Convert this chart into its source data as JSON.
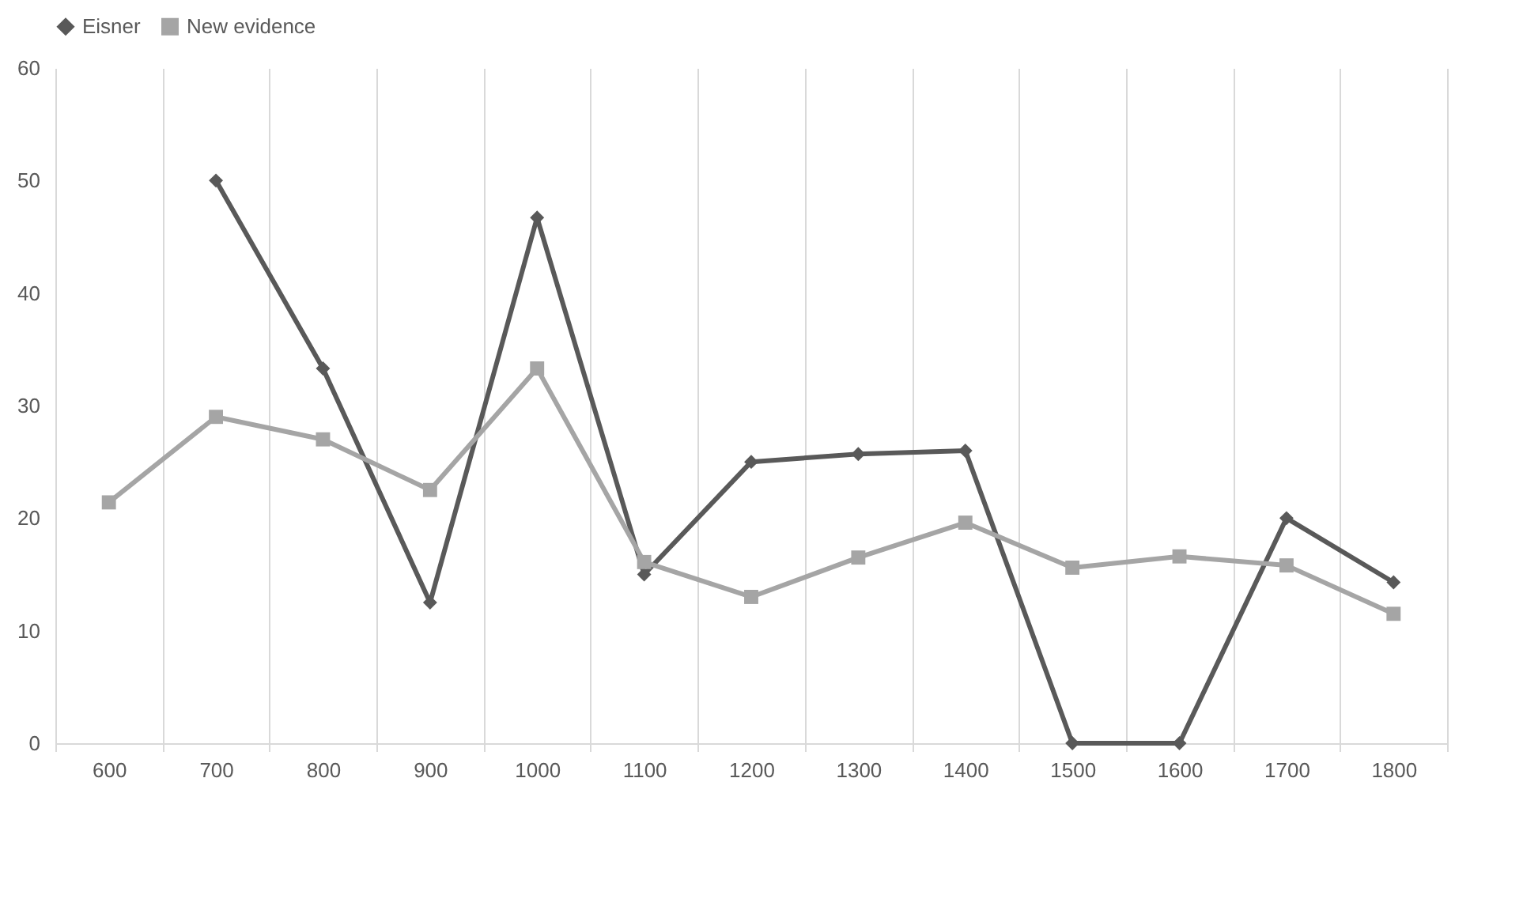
{
  "chart_data": {
    "type": "line",
    "categories": [
      "600",
      "700",
      "800",
      "900",
      "1000",
      "1100",
      "1200",
      "1300",
      "1400",
      "1500",
      "1600",
      "1700",
      "1800"
    ],
    "series": [
      {
        "name": "Eisner",
        "color": "#595959",
        "marker": "diamond",
        "line_style": "solid",
        "values": [
          null,
          50,
          33.3,
          12.5,
          46.7,
          15,
          25,
          25.7,
          26,
          0,
          0,
          20,
          14.3
        ]
      },
      {
        "name": "New evidence",
        "color": "#a5a5a5",
        "marker": "square",
        "line_style": "solid",
        "values": [
          21.4,
          29,
          27,
          22.5,
          33.3,
          16.1,
          13,
          16.5,
          19.6,
          15.6,
          16.6,
          15.8,
          11.5
        ]
      }
    ],
    "ylim": [
      0,
      60
    ],
    "yticks": [
      0,
      10,
      20,
      30,
      40,
      50,
      60
    ],
    "grid": "x",
    "legend": "top"
  }
}
